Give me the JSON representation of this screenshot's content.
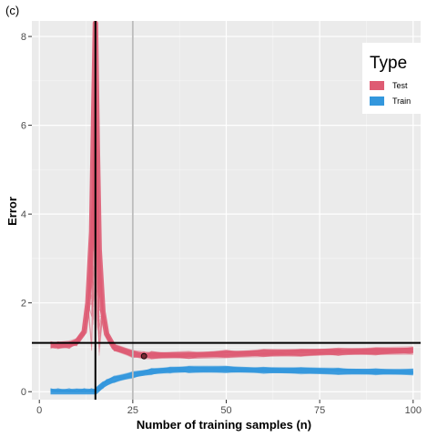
{
  "chart_data": {
    "type": "line",
    "panel_tag": "(c)",
    "xlabel": "Number of training samples (n)",
    "ylabel": "Error",
    "xlim": [
      -2,
      102
    ],
    "ylim": [
      -0.18,
      8.35
    ],
    "x_ticks": [
      0,
      25,
      50,
      75,
      100
    ],
    "y_ticks": [
      0,
      2,
      4,
      6,
      8
    ],
    "grid": true,
    "legend": {
      "title": "Type",
      "position": "top-right",
      "entries": [
        {
          "label": "Test",
          "color": "#de5b73"
        },
        {
          "label": "Train",
          "color": "#3397dd"
        }
      ]
    },
    "series": [
      {
        "name": "Test",
        "color": "#de5b73",
        "x": [
          3,
          5,
          8,
          10,
          12,
          13,
          14,
          14.5,
          15,
          15.5,
          16,
          17,
          18,
          20,
          25,
          28,
          30,
          40,
          50,
          60,
          70,
          80,
          90,
          100
        ],
        "y": [
          1.05,
          1.05,
          1.06,
          1.12,
          1.35,
          2.0,
          3.6,
          6.0,
          8.3,
          5.5,
          3.2,
          1.8,
          1.3,
          1.0,
          0.85,
          0.82,
          0.82,
          0.83,
          0.85,
          0.87,
          0.88,
          0.9,
          0.91,
          0.93
        ],
        "band": 0.08
      },
      {
        "name": "Train",
        "color": "#3397dd",
        "x": [
          3,
          5,
          8,
          10,
          12,
          14,
          15,
          16,
          17,
          18,
          20,
          25,
          30,
          35,
          40,
          50,
          60,
          70,
          80,
          90,
          100
        ],
        "y": [
          0,
          0,
          0,
          0,
          0,
          0,
          0,
          0.08,
          0.15,
          0.2,
          0.28,
          0.38,
          0.45,
          0.49,
          0.5,
          0.5,
          0.48,
          0.47,
          0.46,
          0.45,
          0.44
        ],
        "band": 0.07
      }
    ],
    "reference_lines": [
      {
        "orientation": "vertical",
        "value": 15,
        "color": "#000000"
      },
      {
        "orientation": "vertical",
        "value": 25,
        "color": "#bdbdbd"
      },
      {
        "orientation": "horizontal",
        "value": 1.1,
        "color": "#000000"
      }
    ],
    "highlight_point": {
      "x": 28,
      "y": 0.8
    }
  }
}
